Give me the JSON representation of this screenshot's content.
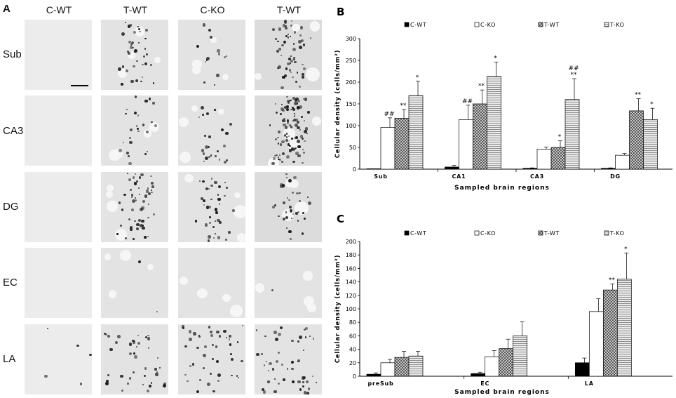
{
  "panelA": {
    "letter": "A",
    "columns": [
      "C-WT",
      "T-WT",
      "C-KO",
      "T-WT"
    ],
    "rows": [
      "Sub",
      "CA3",
      "DG",
      "EC",
      "LA"
    ]
  },
  "chart_data": [
    {
      "panel": "B",
      "type": "bar",
      "categories": [
        "Sub",
        "CA1",
        "CA3",
        "DG"
      ],
      "series": [
        {
          "name": "C-WT",
          "values": [
            1,
            5,
            2,
            2
          ],
          "errors": [
            0,
            4,
            1,
            1
          ]
        },
        {
          "name": "C-KO",
          "values": [
            96,
            114,
            46,
            32
          ],
          "errors": [
            22,
            33,
            5,
            4
          ]
        },
        {
          "name": "T-WT",
          "values": [
            117,
            150,
            50,
            134
          ],
          "errors": [
            20,
            32,
            15,
            28
          ]
        },
        {
          "name": "T-KO",
          "values": [
            169,
            213,
            160,
            114
          ],
          "errors": [
            33,
            33,
            48,
            26
          ]
        }
      ],
      "annotations": [
        [
          "",
          "##",
          "**",
          "*"
        ],
        [
          "",
          "##",
          "**",
          "*"
        ],
        [
          "",
          "",
          "*",
          "##\n**"
        ],
        [
          "",
          "",
          "**",
          "*"
        ]
      ],
      "ylabel": "Cellular density (cells/mm²)",
      "xlabel": "Sampled brain regions",
      "ylim": [
        0,
        300
      ],
      "yticks": [
        0,
        50,
        100,
        150,
        200,
        250,
        300
      ],
      "legend": "top"
    },
    {
      "panel": "C",
      "type": "bar",
      "categories": [
        "preSub",
        "EC",
        "LA"
      ],
      "series": [
        {
          "name": "C-WT",
          "values": [
            3,
            4,
            20
          ],
          "errors": [
            2,
            2,
            7
          ]
        },
        {
          "name": "C-KO",
          "values": [
            20,
            29,
            96
          ],
          "errors": [
            5,
            9,
            19
          ]
        },
        {
          "name": "T-WT",
          "values": [
            28,
            41,
            128
          ],
          "errors": [
            9,
            14,
            9
          ]
        },
        {
          "name": "T-KO",
          "values": [
            30,
            60,
            144
          ],
          "errors": [
            7,
            21,
            39
          ]
        }
      ],
      "annotations": [
        [
          "",
          "",
          "",
          ""
        ],
        [
          "",
          "",
          "",
          ""
        ],
        [
          "",
          "",
          "**",
          "*"
        ]
      ],
      "ylabel": "Cellular density (cells/mm²)",
      "xlabel": "Sampled brain regions",
      "ylim": [
        0,
        200
      ],
      "yticks": [
        0,
        20,
        40,
        60,
        80,
        100,
        120,
        140,
        160,
        180,
        200
      ],
      "legend": "top"
    }
  ]
}
